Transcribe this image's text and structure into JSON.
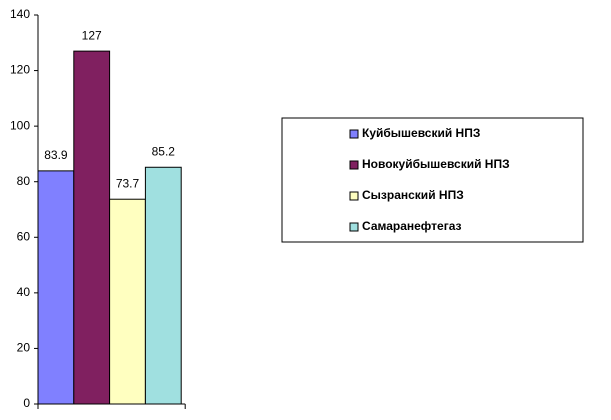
{
  "chart_data": {
    "type": "bar",
    "series": [
      {
        "name": "Куйбышевский НПЗ",
        "color": "#8080ff",
        "values": [
          83.9
        ]
      },
      {
        "name": "Новокуйбышевский НПЗ",
        "color": "#802060",
        "values": [
          127
        ]
      },
      {
        "name": "Сызранский НПЗ",
        "color": "#ffffc0",
        "values": [
          73.7
        ]
      },
      {
        "name": "Самаранефтегаз",
        "color": "#a0e0e0",
        "values": [
          85.2
        ]
      }
    ],
    "ylim": [
      0,
      140
    ],
    "yticks": [
      0,
      20,
      40,
      60,
      80,
      100,
      120,
      140
    ],
    "grid": false,
    "legend": "right"
  }
}
